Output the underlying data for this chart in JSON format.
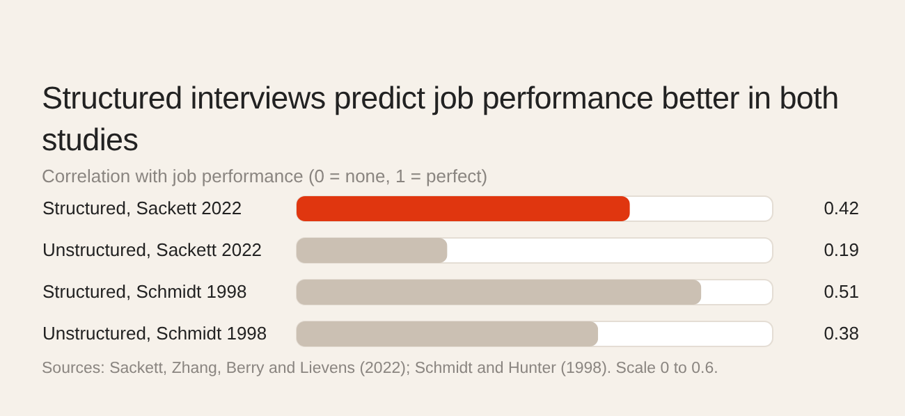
{
  "chart_data": {
    "type": "bar",
    "orientation": "horizontal",
    "title": "Structured interviews predict job performance better in both studies",
    "subtitle": "Correlation with job performance (0 = none, 1 = perfect)",
    "categories": [
      "Structured, Sackett 2022",
      "Unstructured, Sackett 2022",
      "Structured, Schmidt 1998",
      "Unstructured, Schmidt 1998"
    ],
    "values": [
      0.42,
      0.19,
      0.51,
      0.38
    ],
    "colors": [
      "#e0360f",
      "#cbc0b3",
      "#cbc0b3",
      "#cbc0b3"
    ],
    "xlim": [
      0,
      0.6
    ],
    "tick_labels": "y",
    "legend": false,
    "data_labels": true,
    "annotations": [
      "Sources: Sackett, Zhang, Berry and Lievens (2022); Schmidt and Hunter (1998). Scale 0 to 0.6."
    ]
  }
}
